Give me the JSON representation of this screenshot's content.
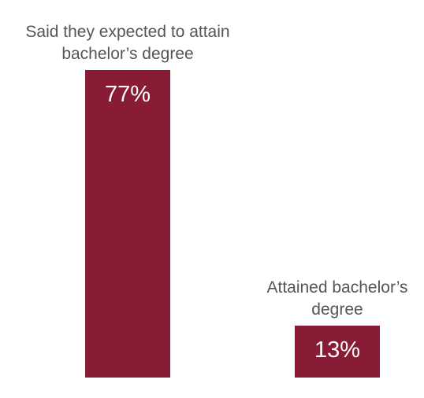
{
  "chart_data": {
    "type": "bar",
    "categories": [
      [
        "Said they expected to attain",
        "bachelor’s degree"
      ],
      [
        "Attained bachelor’s",
        "degree"
      ]
    ],
    "values": [
      77,
      13
    ],
    "value_labels": [
      "77%",
      "13%"
    ],
    "ylim": [
      0,
      77
    ],
    "bar_color": "#871C34",
    "title": "",
    "xlabel": "",
    "ylabel": "",
    "grid": false,
    "legend": "none"
  }
}
